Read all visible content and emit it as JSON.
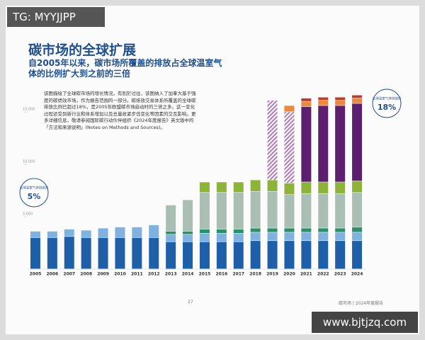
{
  "watermark": "TG: MYYJJPP",
  "site": "www.bjtjzq.com",
  "title": "碳市场的全球扩展",
  "subtitle": "自2005年以来，碳市场所覆盖的排放占全球温室气体的比例扩大到之前的三倍",
  "paragraph": "该图描绘了全球碳市场的增长情况。有别於过往，该图纳入了加拿大基于强度的碳绩效市场，作为报告范围的一部分。碳排放交易体系所覆盖的全球碳排放比例已超过18%，是2005年欧盟碳市场启动时的三倍之多。这一变化过程还受到新行业和体系增加以及总量收紧步伐变化等因素的交互影响。更多详细信息，敬请参阅国际碳行动伙伴组织《2024年度报告》英文版中的「方法和来源说明」(Notes on Methods and Sources)。",
  "footer": {
    "page": "27",
    "report": "碳市场 | 2024年度报告"
  },
  "chart_data": {
    "type": "stacked-bar",
    "categories": [
      "2005",
      "2006",
      "2007",
      "2008",
      "2009",
      "2010",
      "2011",
      "2012",
      "2013",
      "2014",
      "2015",
      "2016",
      "2017",
      "2018",
      "2019",
      "2020",
      "2021",
      "2022",
      "2023",
      "2024"
    ],
    "ylim": [
      0,
      16500
    ],
    "yticks": [
      {
        "value": 5000,
        "label": "5,000"
      },
      {
        "value": 10000,
        "label": "10,000"
      },
      {
        "value": 15000,
        "label": "15,000"
      }
    ],
    "series": [
      {
        "color": "#1f5fa8",
        "values": [
          3000,
          3000,
          3100,
          3000,
          3000,
          3000,
          3000,
          3000,
          2600,
          2600,
          2600,
          2600,
          2600,
          2700,
          2700,
          2700,
          2700,
          2700,
          2700,
          2700
        ]
      },
      {
        "color": "#7fb2de",
        "values": [
          600,
          600,
          700,
          700,
          900,
          1000,
          1000,
          1200,
          700,
          700,
          800,
          800,
          800,
          800,
          800,
          800,
          800,
          800,
          800,
          800
        ]
      },
      {
        "color": "#2e8f6b",
        "values": [
          null,
          null,
          null,
          null,
          null,
          null,
          null,
          null,
          300,
          300,
          400,
          400,
          400,
          400,
          400,
          400,
          400,
          400,
          400,
          500
        ]
      },
      {
        "color": "#a9bfb4",
        "values": [
          null,
          null,
          null,
          null,
          null,
          null,
          null,
          null,
          2500,
          3000,
          3500,
          3500,
          3500,
          3500,
          3500,
          3200,
          3300,
          3300,
          3300,
          3300
        ]
      },
      {
        "color": "#8db33a",
        "values": [
          null,
          null,
          null,
          null,
          null,
          null,
          null,
          null,
          null,
          null,
          1000,
          1000,
          1000,
          1100,
          1100,
          1100,
          1100,
          1100,
          1100,
          1100
        ]
      },
      {
        "color": "#5b1f6e",
        "values": [
          null,
          null,
          null,
          null,
          null,
          null,
          null,
          null,
          null,
          null,
          null,
          null,
          null,
          null,
          null,
          null,
          7200,
          7300,
          7300,
          7400
        ]
      },
      {
        "color": "#b07ab8",
        "hatched": true,
        "values": [
          null,
          null,
          null,
          null,
          null,
          null,
          null,
          null,
          null,
          null,
          null,
          null,
          null,
          null,
          7600,
          6800,
          null,
          null,
          null,
          null
        ]
      },
      {
        "color": "#e98a3c",
        "values": [
          null,
          null,
          null,
          null,
          null,
          null,
          null,
          null,
          null,
          null,
          null,
          null,
          null,
          null,
          null,
          600,
          500,
          500,
          500,
          500
        ]
      },
      {
        "color": "#c0392b",
        "values": [
          null,
          null,
          null,
          null,
          null,
          null,
          null,
          null,
          null,
          null,
          null,
          null,
          null,
          null,
          null,
          null,
          300,
          300,
          300,
          300
        ]
      }
    ],
    "annotations": [
      {
        "text": "全球温室气体排放的",
        "share": "5%"
      },
      {
        "text": "全球温室气体排放的",
        "share": "18%"
      }
    ]
  }
}
